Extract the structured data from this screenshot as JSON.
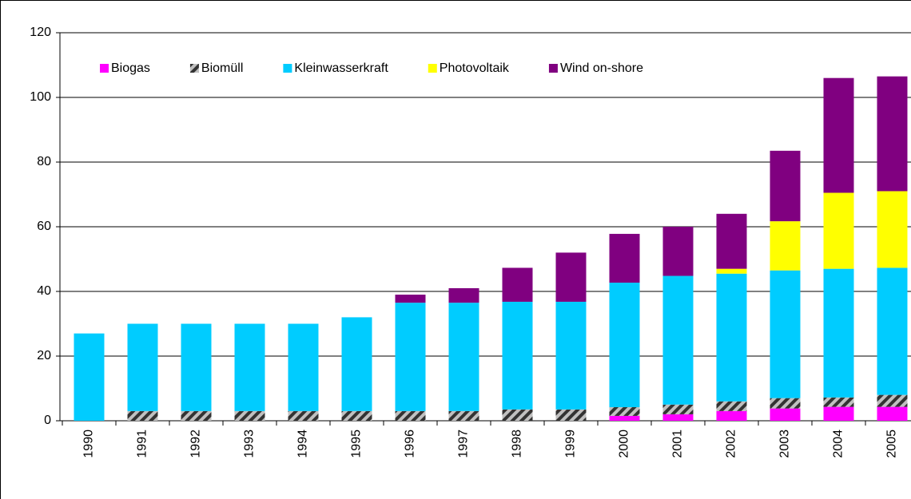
{
  "chart_data": {
    "type": "stacked_bar",
    "categories": [
      "1990",
      "1991",
      "1992",
      "1993",
      "1994",
      "1995",
      "1996",
      "1997",
      "1998",
      "1999",
      "2000",
      "2001",
      "2002",
      "2003",
      "2004",
      "2005"
    ],
    "series": [
      {
        "name": "Biogas",
        "color": "#ff00ff",
        "values": [
          0,
          0,
          0,
          0,
          0,
          0,
          0,
          0,
          0,
          0,
          1.5,
          2,
          3,
          3.8,
          4.3,
          4.3
        ]
      },
      {
        "name": "Biomüll",
        "color": "#808080",
        "hatch": true,
        "values": [
          0,
          3,
          3,
          3,
          3,
          3,
          3,
          3,
          3.5,
          3.5,
          2.7,
          3,
          3,
          3.2,
          2.9,
          3.7
        ]
      },
      {
        "name": "Kleinwasserkraft",
        "color": "#00ccff",
        "values": [
          27,
          27,
          27,
          27,
          27,
          29,
          33.5,
          33.5,
          33.3,
          33.3,
          38.5,
          39.8,
          39.5,
          39.5,
          39.8,
          39.3
        ]
      },
      {
        "name": "Photovoltaik",
        "color": "#ffff00",
        "values": [
          0,
          0,
          0,
          0,
          0,
          0,
          0,
          0,
          0,
          0,
          0,
          0,
          1.5,
          15.2,
          23.5,
          23.7
        ]
      },
      {
        "name": "Wind on-shore",
        "color": "#800080",
        "values": [
          0,
          0,
          0,
          0,
          0,
          0,
          2.5,
          4.5,
          10.5,
          15.2,
          15.1,
          15.2,
          17,
          21.8,
          35.5,
          35.5
        ]
      }
    ],
    "ylim": [
      0,
      120
    ],
    "yticks": [
      0,
      20,
      40,
      60,
      80,
      100,
      120
    ],
    "grid": true
  }
}
